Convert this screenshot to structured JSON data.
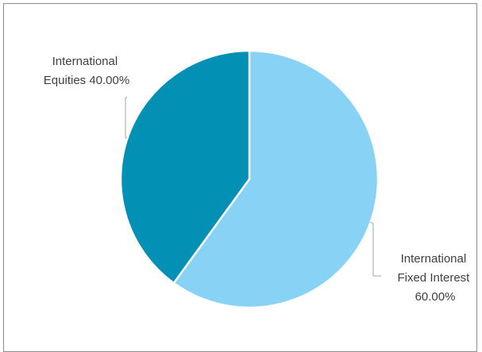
{
  "chart_data": {
    "type": "pie",
    "start_angle_deg": 0,
    "direction": "clockwise",
    "slices": [
      {
        "label_lines": [
          "International",
          "Fixed Interest",
          "60.00%"
        ],
        "value": 60.0,
        "color": "#87d2f5"
      },
      {
        "label_lines": [
          "International",
          "Equities 40.00%"
        ],
        "value": 40.0,
        "color": "#0290b4"
      }
    ],
    "legend": "none",
    "data_labels": "outside with leader lines"
  }
}
